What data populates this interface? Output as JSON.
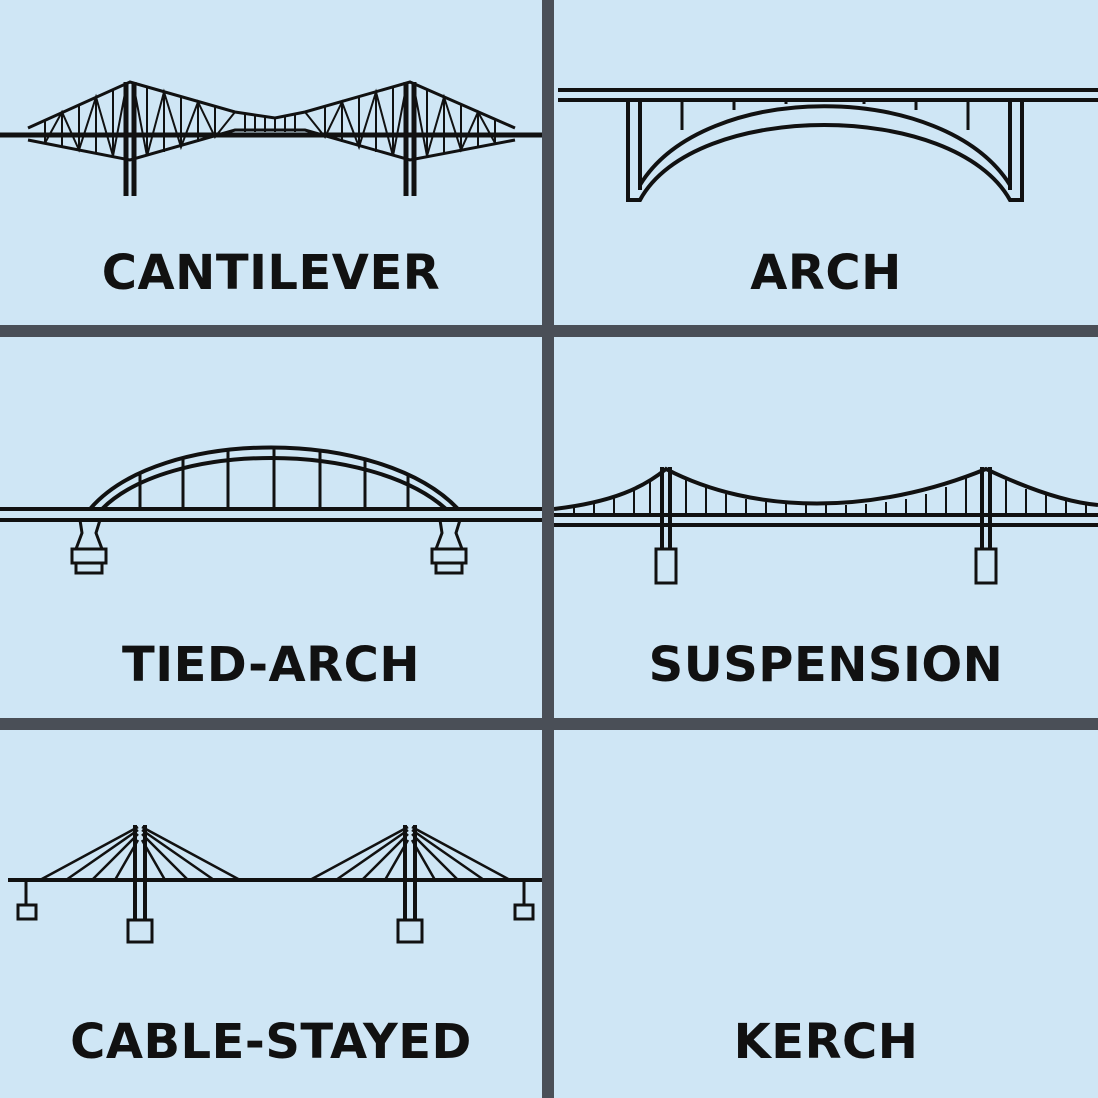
{
  "panels": [
    {
      "id": "cantilever",
      "label": "CANTILEVER"
    },
    {
      "id": "arch",
      "label": "ARCH"
    },
    {
      "id": "tied-arch",
      "label": "TIED-ARCH"
    },
    {
      "id": "suspension",
      "label": "SUSPENSION"
    },
    {
      "id": "cable-stayed",
      "label": "CABLE-STAYED"
    },
    {
      "id": "kerch",
      "label": "KERCH"
    }
  ],
  "colors": {
    "background": "#cfe6f5",
    "divider": "#4a4f57",
    "ink": "#111111"
  }
}
